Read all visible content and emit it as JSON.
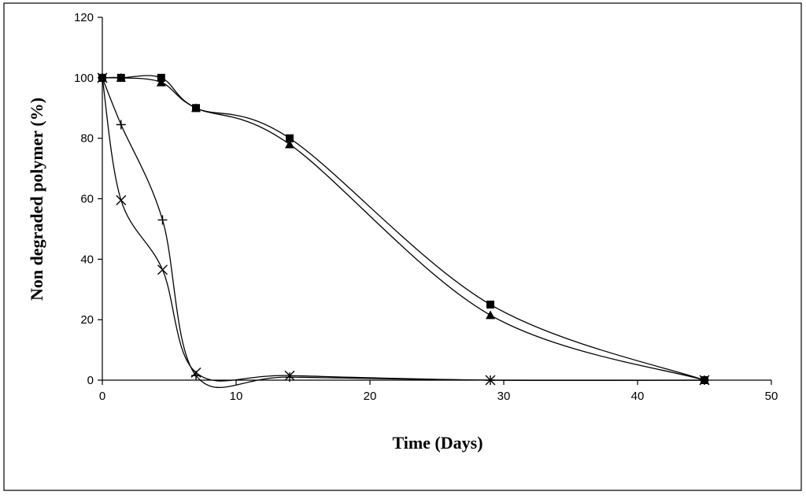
{
  "chart_data": {
    "type": "line",
    "title": "",
    "xlabel": "Time (Days)",
    "ylabel": "Non degraded polymer (%)",
    "xlim": [
      0,
      50
    ],
    "ylim": [
      0,
      120
    ],
    "x_ticks": [
      0,
      10,
      20,
      30,
      40,
      50
    ],
    "y_ticks": [
      0,
      20,
      40,
      60,
      80,
      100,
      120
    ],
    "grid": false,
    "legend": "none",
    "series": [
      {
        "name": "square markers",
        "marker": "square",
        "x": [
          0,
          1.4,
          4.4,
          7,
          14,
          29,
          45
        ],
        "y": [
          100,
          100,
          100,
          90,
          80,
          25,
          0
        ]
      },
      {
        "name": "triangle markers",
        "marker": "triangle",
        "x": [
          0,
          1.4,
          4.4,
          7,
          14,
          29,
          45
        ],
        "y": [
          100,
          100,
          98.5,
          90,
          78,
          21.5,
          0
        ]
      },
      {
        "name": "plus markers",
        "marker": "plus",
        "x": [
          0,
          1.4,
          4.5,
          7,
          14,
          29,
          45
        ],
        "y": [
          100,
          84.5,
          53,
          1.5,
          1,
          0,
          0
        ]
      },
      {
        "name": "x markers",
        "marker": "x",
        "x": [
          0,
          1.4,
          4.5,
          7,
          14,
          29,
          45
        ],
        "y": [
          100,
          59.5,
          36.5,
          2.5,
          1.5,
          0,
          0
        ]
      }
    ]
  }
}
